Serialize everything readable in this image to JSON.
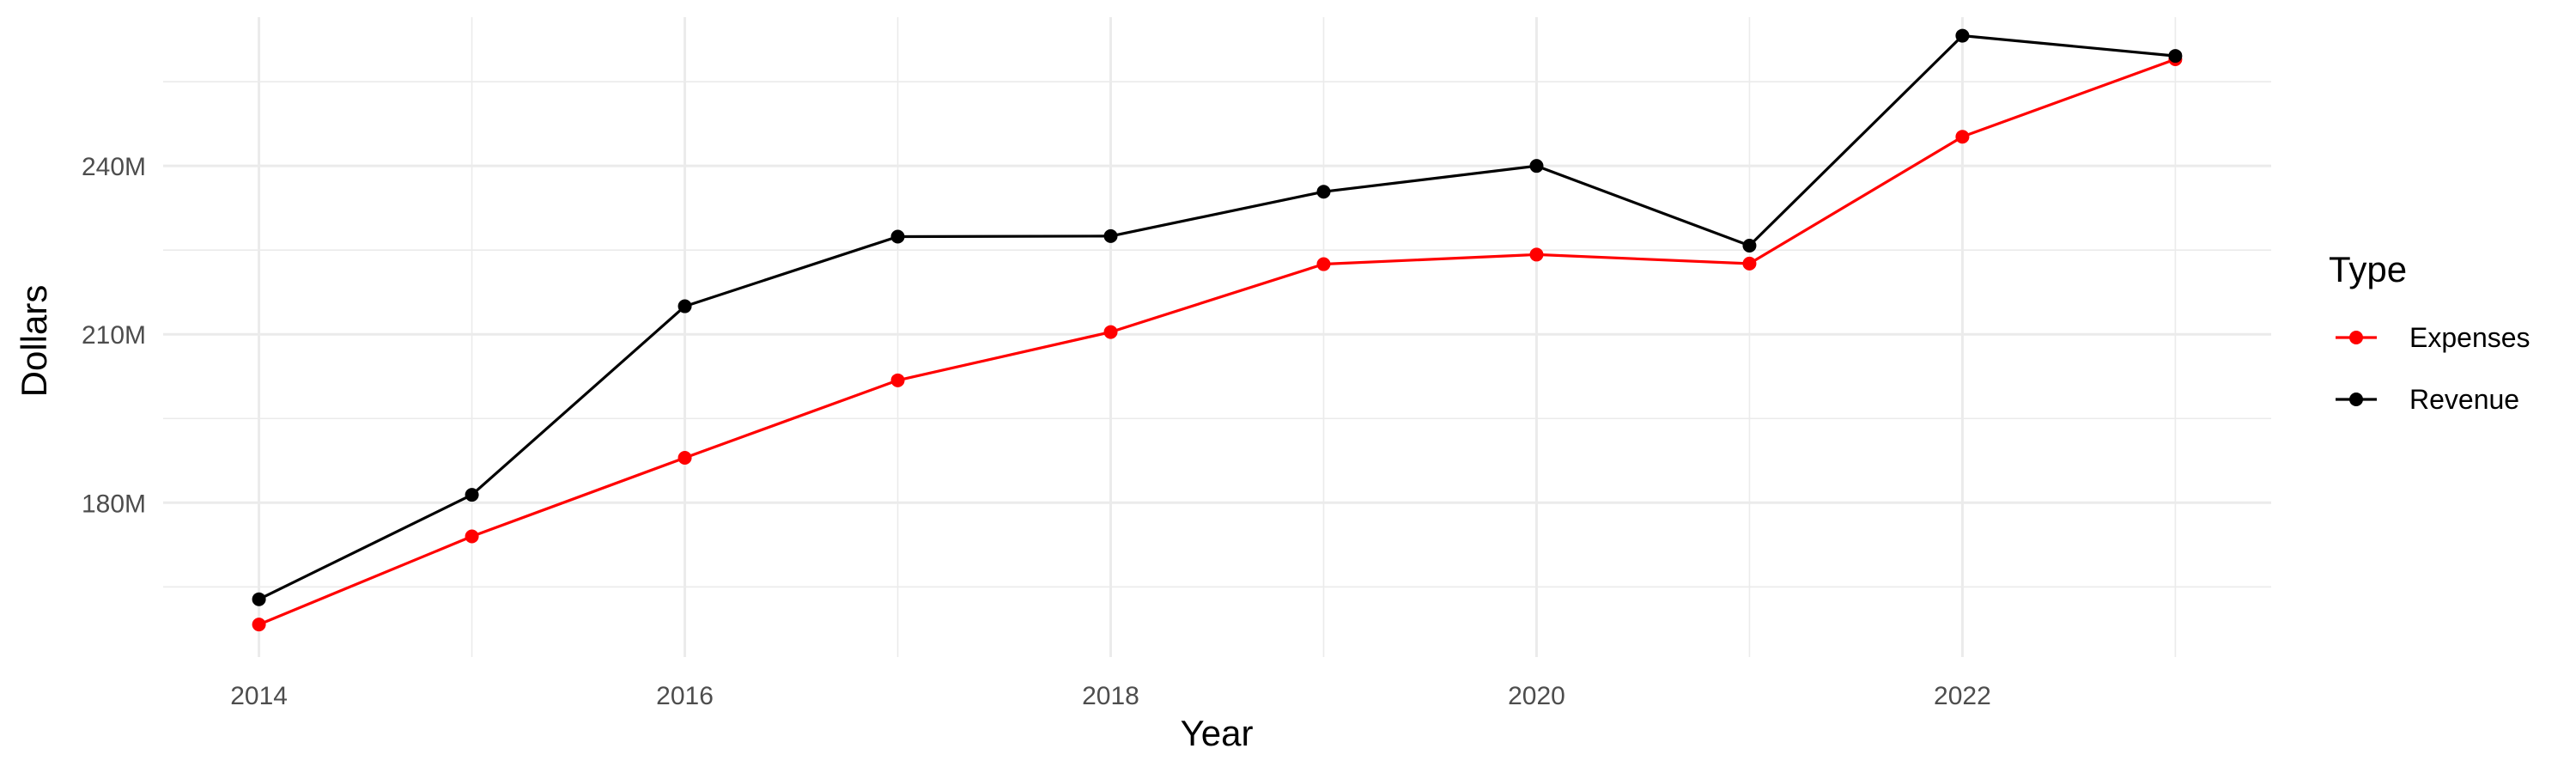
{
  "chart_data": {
    "type": "line",
    "title": "",
    "xlabel": "Year",
    "ylabel": "Dollars",
    "x": [
      2014,
      2015,
      2016,
      2017,
      2018,
      2019,
      2020,
      2021,
      2022,
      2023
    ],
    "x_ticks": [
      2014,
      2016,
      2018,
      2020,
      2022
    ],
    "x_tick_labels": [
      "2014",
      "2016",
      "2018",
      "2020",
      "2022"
    ],
    "xlim": [
      2013.55,
      2023.45
    ],
    "y_ticks": [
      180,
      210,
      240
    ],
    "y_tick_labels": [
      "180M",
      "210M",
      "240M"
    ],
    "y_unit": "M",
    "ylim": [
      152.5,
      266.5
    ],
    "grid": true,
    "legend": {
      "title": "Type",
      "placement": "right"
    },
    "series": [
      {
        "name": "Expenses",
        "color": "#ff0000",
        "values": [
          158.3,
          174.0,
          188.0,
          201.8,
          210.4,
          222.5,
          224.2,
          222.6,
          245.2,
          259.0
        ]
      },
      {
        "name": "Revenue",
        "color": "#000000",
        "values": [
          162.8,
          181.4,
          215.0,
          227.4,
          227.5,
          235.4,
          240.0,
          225.8,
          263.2,
          259.6
        ]
      }
    ]
  }
}
